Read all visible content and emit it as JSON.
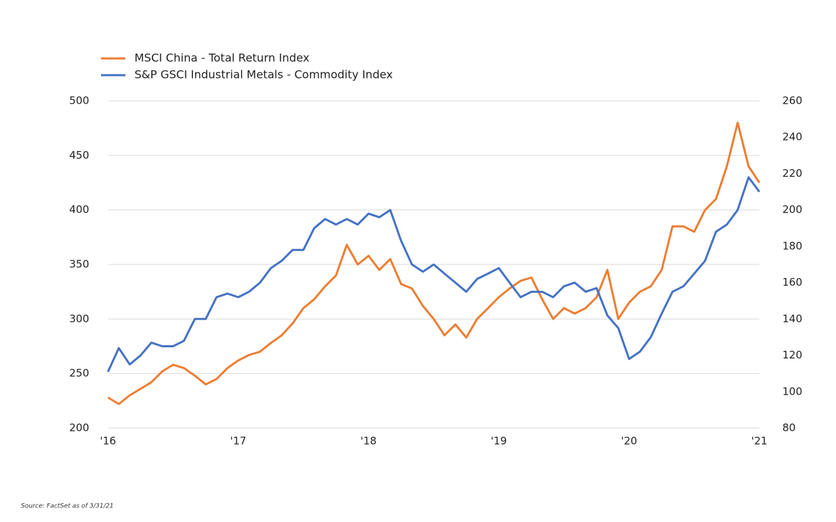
{
  "chart_data": {
    "type": "line",
    "source": "Source: FactSet as of 3/31/21",
    "x": [
      2016,
      2016.083,
      2016.167,
      2016.25,
      2016.333,
      2016.417,
      2016.5,
      2016.583,
      2016.667,
      2016.75,
      2016.833,
      2016.917,
      2017,
      2017.083,
      2017.167,
      2017.25,
      2017.333,
      2017.417,
      2017.5,
      2017.583,
      2017.667,
      2017.75,
      2017.833,
      2017.917,
      2018,
      2018.083,
      2018.167,
      2018.25,
      2018.333,
      2018.417,
      2018.5,
      2018.583,
      2018.667,
      2018.75,
      2018.833,
      2018.917,
      2019,
      2019.083,
      2019.167,
      2019.25,
      2019.333,
      2019.417,
      2019.5,
      2019.583,
      2019.667,
      2019.75,
      2019.833,
      2019.917,
      2020,
      2020.083,
      2020.167,
      2020.25,
      2020.333,
      2020.417,
      2020.5,
      2020.583,
      2020.667,
      2020.75,
      2020.833,
      2020.917,
      2021
    ],
    "series": [
      {
        "name": "MSCI China - Total Return Index",
        "color": "#ed7d31",
        "axis": "y",
        "values": [
          228,
          222,
          230,
          236,
          242,
          252,
          258,
          255,
          248,
          240,
          245,
          255,
          262,
          267,
          270,
          278,
          285,
          296,
          310,
          318,
          330,
          340,
          368,
          350,
          358,
          345,
          355,
          332,
          328,
          312,
          300,
          285,
          295,
          283,
          300,
          310,
          320,
          328,
          335,
          338,
          318,
          300,
          310,
          305,
          310,
          320,
          345,
          300,
          315,
          325,
          330,
          345,
          385,
          385,
          380,
          400,
          410,
          440,
          480,
          440,
          425
        ]
      },
      {
        "name": "S&P GSCI Industrial Metals - Commodity Index",
        "color": "#4472c4",
        "axis": "y2",
        "values": [
          111,
          124,
          115,
          120,
          127,
          125,
          125,
          128,
          140,
          140,
          152,
          154,
          152,
          155,
          160,
          168,
          172,
          178,
          178,
          190,
          195,
          192,
          195,
          192,
          198,
          196,
          200,
          183,
          170,
          166,
          170,
          165,
          160,
          155,
          162,
          165,
          168,
          160,
          152,
          155,
          155,
          152,
          158,
          160,
          155,
          157,
          142,
          135,
          118,
          122,
          130,
          143,
          155,
          158,
          165,
          172,
          188,
          192,
          200,
          218,
          210
        ]
      }
    ],
    "xlim": [
      2016,
      2021
    ],
    "xticks": [
      {
        "value": 2016,
        "label": "'16"
      },
      {
        "value": 2017,
        "label": "'17"
      },
      {
        "value": 2018,
        "label": "'18"
      },
      {
        "value": 2019,
        "label": "'19"
      },
      {
        "value": 2020,
        "label": "'20"
      },
      {
        "value": 2021,
        "label": "'21"
      }
    ],
    "ylim": [
      200,
      500
    ],
    "yticks": [
      200,
      250,
      300,
      350,
      400,
      450,
      500
    ],
    "y2lim": [
      80,
      260
    ],
    "y2ticks": [
      80,
      100,
      120,
      140,
      160,
      180,
      200,
      220,
      240,
      260
    ],
    "grid": true,
    "legend": "top-left"
  }
}
